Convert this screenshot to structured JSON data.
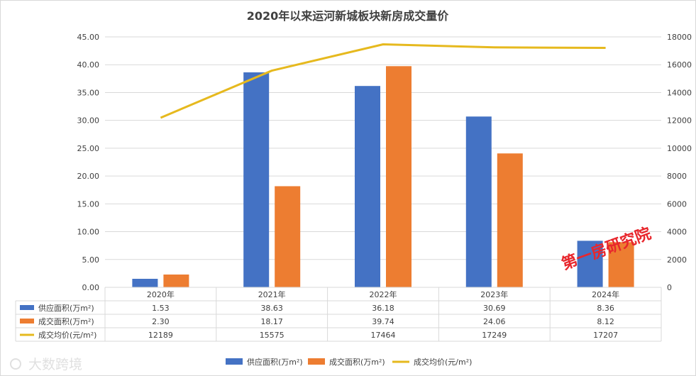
{
  "chart_data": {
    "type": "bar",
    "title": "2020年以来运河新城板块新房成交量价",
    "categories": [
      "2020年",
      "2021年",
      "2022年",
      "2023年",
      "2024年"
    ],
    "series": [
      {
        "name": "供应面积(万m²)",
        "kind": "bar",
        "axis": "left",
        "color": "#4472c4",
        "values": [
          1.53,
          38.63,
          36.18,
          30.69,
          8.36
        ],
        "labels": [
          "1.53",
          "38.63",
          "36.18",
          "30.69",
          "8.36"
        ]
      },
      {
        "name": "成交面积(万m²)",
        "kind": "bar",
        "axis": "left",
        "color": "#ed7d31",
        "values": [
          2.3,
          18.17,
          39.74,
          24.06,
          8.12
        ],
        "labels": [
          "2.30",
          "18.17",
          "39.74",
          "24.06",
          "8.12"
        ]
      },
      {
        "name": "成交均价(元/m²)",
        "kind": "line",
        "axis": "right",
        "color": "#e6b91e",
        "values": [
          12189,
          15575,
          17464,
          17249,
          17207
        ],
        "labels": [
          "12189",
          "15575",
          "17464",
          "17249",
          "17207"
        ]
      }
    ],
    "y_left": {
      "min": 0,
      "max": 45,
      "step": 5,
      "ticks": [
        "0.00",
        "5.00",
        "10.00",
        "15.00",
        "20.00",
        "25.00",
        "30.00",
        "35.00",
        "40.00",
        "45.00"
      ]
    },
    "y_right": {
      "min": 0,
      "max": 18000,
      "step": 2000,
      "ticks": [
        "0",
        "2000",
        "4000",
        "6000",
        "8000",
        "10000",
        "12000",
        "14000",
        "16000",
        "18000"
      ]
    },
    "grid": true,
    "legend_position": "bottom",
    "data_table": true
  },
  "watermark": {
    "text": "第一房研究院",
    "color": "#e8262c"
  },
  "logo": {
    "text": "大数跨境"
  }
}
